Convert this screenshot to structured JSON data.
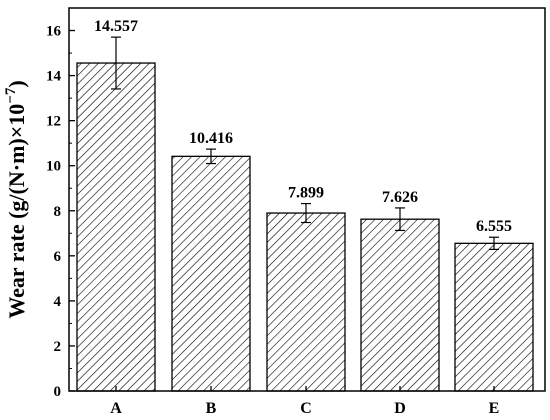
{
  "chart_data": {
    "type": "bar",
    "categories": [
      "A",
      "B",
      "C",
      "D",
      "E"
    ],
    "values": [
      14.557,
      10.416,
      7.899,
      7.626,
      6.555
    ],
    "errors": [
      1.15,
      0.32,
      0.42,
      0.5,
      0.27
    ],
    "data_labels": [
      "14.557",
      "10.416",
      "7.899",
      "7.626",
      "6.555"
    ],
    "xlabel": "",
    "ylabel": "Wear rate (g/(N·m)×10",
    "ylabel_exponent": "−7",
    "ylabel_close": ")",
    "ylim": [
      0,
      17
    ],
    "yticks": [
      0,
      2,
      4,
      6,
      8,
      10,
      12,
      14,
      16
    ],
    "bar_fill": "hatched",
    "bar_color": "#000000",
    "background": "#ffffff",
    "grid": false,
    "legend": "none"
  }
}
